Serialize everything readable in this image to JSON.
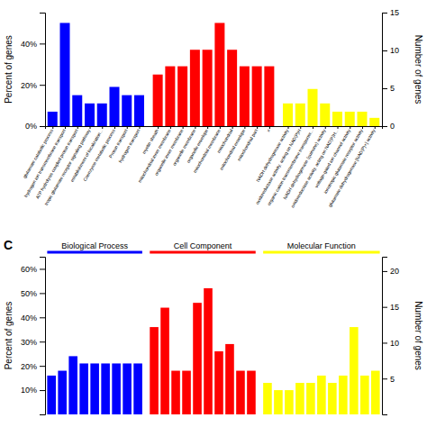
{
  "chart_data": [
    {
      "type": "bar",
      "categories": [
        "glutamate catabolic process",
        "hydrogen ion transmembrane transport",
        "ATP hydrolysis coupled proton transport",
        "tropic glutamate receptor signaling pathway",
        "establishment of localization...",
        "Coenzyme metabolic process",
        "Proton transport",
        "hydrogen transport",
        "myelin sheath",
        "mitochondrial inner membrane",
        "organelle inner membrane",
        "organelle membrane",
        "organelle envelope",
        "mitochondrial membrane",
        "mitochondrial",
        "mitochondrial envelope",
        "mitochondrial part",
        "x",
        "NADH dehydrogenase activity",
        "oxidoreductase activity, acting on NAD(P)H",
        "organic cation transmembrane transporter...",
        "NADH dehydrogenase (quinone) activity",
        "oxidoreductase activity, acting on NAD(P)H...",
        "voltage-gated ion channel activity",
        "ionotropic glutamate receptor activity",
        "glutamate dehydrogenase [NAD(P)+] activity"
      ],
      "values": [
        7,
        50,
        15,
        11,
        11,
        19,
        15,
        15,
        25,
        29,
        29,
        37,
        37,
        50,
        37,
        29,
        29,
        29,
        11,
        11,
        18,
        11,
        7,
        7,
        7,
        4
      ],
      "colors": [
        "#0000ff",
        "#0000ff",
        "#0000ff",
        "#0000ff",
        "#0000ff",
        "#0000ff",
        "#0000ff",
        "#0000ff",
        "#ff0000",
        "#ff0000",
        "#ff0000",
        "#ff0000",
        "#ff0000",
        "#ff0000",
        "#ff0000",
        "#ff0000",
        "#ff0000",
        "#ff0000",
        "#ffff00",
        "#ffff00",
        "#ffff00",
        "#ffff00",
        "#ffff00",
        "#ffff00",
        "#ffff00",
        "#ffff00"
      ],
      "ylabel": "Percent of genes",
      "y2label": "Number of genes",
      "ylim": [
        0,
        55
      ],
      "yticks": [
        {
          "value": 0,
          "label": "0%"
        },
        {
          "value": 20,
          "label": "20%"
        },
        {
          "value": 40,
          "label": "40%"
        }
      ],
      "y2lim": [
        0,
        15
      ],
      "y2ticks": [
        0,
        5,
        10,
        15
      ]
    },
    {
      "type": "bar",
      "title": "C",
      "categories": [
        null,
        null,
        null,
        null,
        null,
        null,
        null,
        null,
        null,
        null,
        null,
        null,
        null,
        null,
        null,
        null,
        null,
        null,
        null,
        null,
        null,
        null,
        null,
        null,
        null,
        null,
        null,
        null,
        null,
        null
      ],
      "series": [
        {
          "name": "Biological Process",
          "color": "#0000ff",
          "values": [
            16,
            18,
            24,
            21,
            21,
            21,
            21,
            21,
            21,
            null,
            null,
            null,
            null,
            null,
            null,
            null,
            null,
            null,
            null,
            null,
            null,
            null,
            null,
            null,
            null,
            null,
            null,
            null,
            null,
            null
          ]
        },
        {
          "name": "Cell Component",
          "color": "#ff0000",
          "values": [
            null,
            null,
            null,
            null,
            null,
            null,
            null,
            null,
            null,
            36,
            44,
            18,
            18,
            46,
            52,
            26,
            29,
            18,
            18,
            null,
            null,
            null,
            null,
            null,
            null,
            null,
            null,
            null,
            null,
            null
          ]
        },
        {
          "name": "Molecular Function",
          "color": "#ffff00",
          "values": [
            null,
            null,
            null,
            null,
            null,
            null,
            null,
            null,
            null,
            null,
            null,
            null,
            null,
            null,
            null,
            null,
            null,
            null,
            null,
            13,
            10,
            10,
            13,
            13,
            16,
            13,
            16,
            36,
            16,
            18
          ]
        }
      ],
      "ylabel": "Percent of genes",
      "y2label": "Number of genes",
      "ylim": [
        0,
        65
      ],
      "yticks": [
        {
          "value": 10,
          "label": "10%"
        },
        {
          "value": 20,
          "label": "20%"
        },
        {
          "value": 30,
          "label": "30%"
        },
        {
          "value": 40,
          "label": "40%"
        },
        {
          "value": 50,
          "label": "50%"
        },
        {
          "value": 60,
          "label": "60%"
        }
      ],
      "y2lim": [
        0,
        22
      ],
      "y2ticks": [
        5,
        10,
        15,
        20
      ],
      "tick_labels": "y"
    }
  ]
}
